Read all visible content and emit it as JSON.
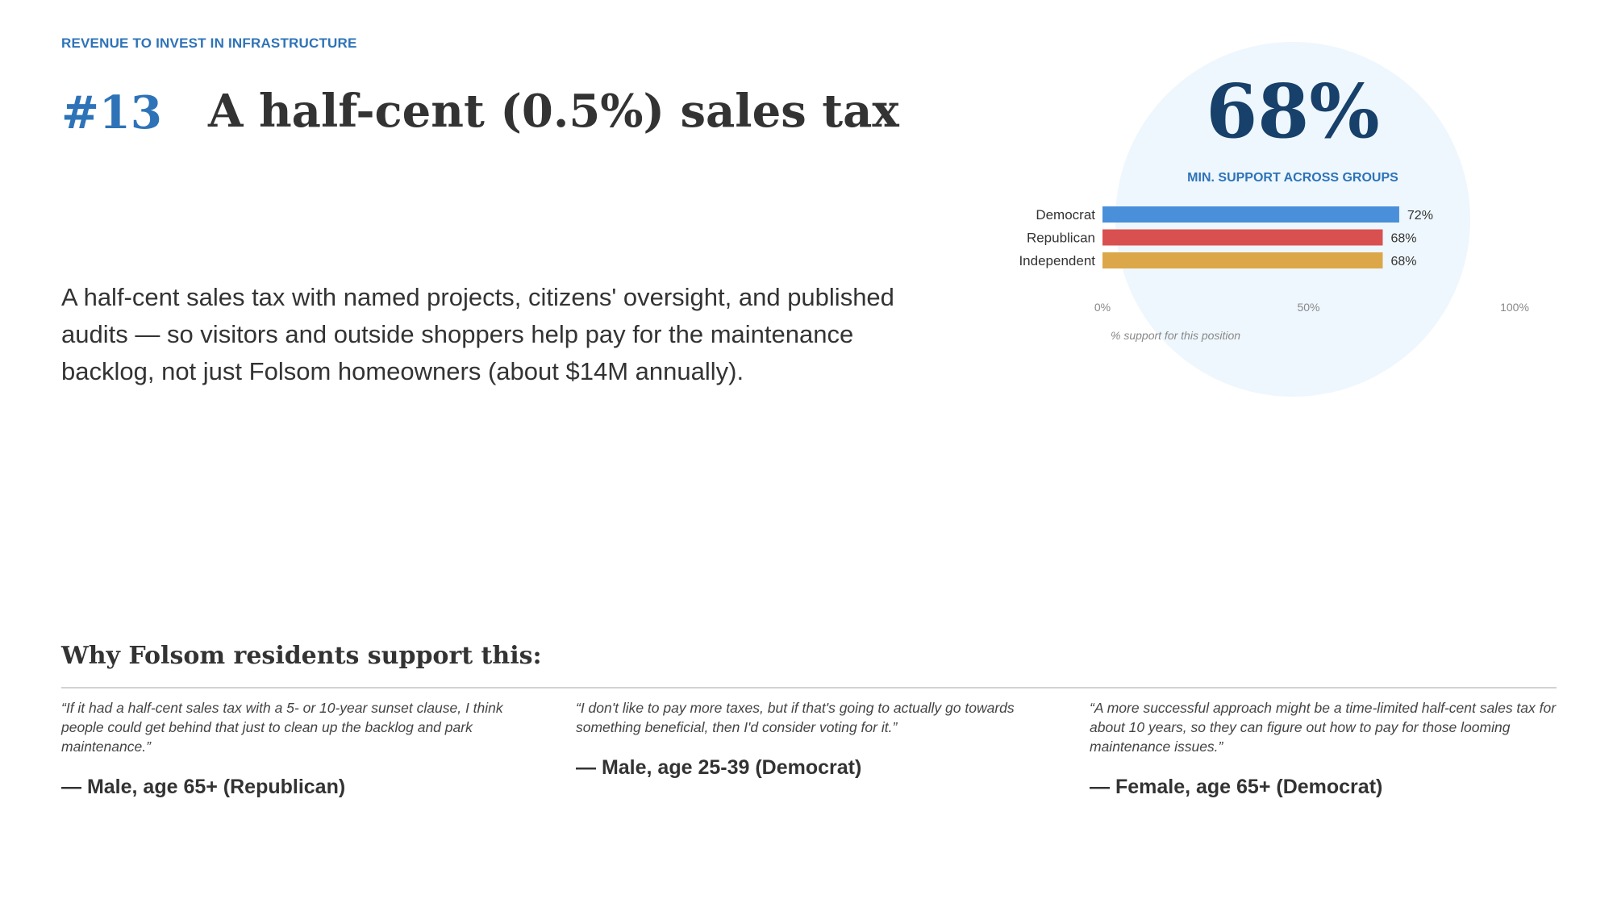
{
  "eyebrow": "REVENUE TO INVEST IN INFRASTRUCTURE",
  "item_number": "#13",
  "title": "A half-cent (0.5%) sales tax",
  "description": "A half-cent sales tax with named projects, citizens' oversight, and published audits — so visitors and outside shoppers help pay for the maintenance backlog, not just Folsom homeowners (about $14M annually).",
  "headline_stat": "68%",
  "headline_stat_label": "MIN. SUPPORT ACROSS GROUPS",
  "colors": {
    "accent": "#2e73b8",
    "headline": "#17406a",
    "circle_bg": "#eef7fd",
    "democrat": "#4a8fd9",
    "republican": "#d95050",
    "independent": "#dca748"
  },
  "chart_data": {
    "type": "bar",
    "orientation": "horizontal",
    "categories": [
      "Democrat",
      "Republican",
      "Independent"
    ],
    "values": [
      72,
      68,
      68
    ],
    "value_labels": [
      "72%",
      "68%",
      "68%"
    ],
    "bar_colors": [
      "#4a8fd9",
      "#d95050",
      "#dca748"
    ],
    "xlim": [
      0,
      100
    ],
    "x_ticks": [
      "0%",
      "50%",
      "100%"
    ],
    "x_tick_values": [
      0,
      50,
      100
    ],
    "xlabel": "% support for this position",
    "grid": false,
    "legend": "none"
  },
  "section_title": "Why Folsom residents support this:",
  "quotes": [
    {
      "text": "“If it had a half-cent sales tax with a 5- or 10-year sunset clause, I think people could get behind that just to clean up the backlog and park maintenance.”",
      "attribution": "— Male, age 65+ (Republican)"
    },
    {
      "text": "“I don't like to pay more taxes, but if that's going to actually go towards something beneficial, then I'd consider voting for it.”",
      "attribution": "— Male, age 25-39 (Democrat)"
    },
    {
      "text": "“A more successful approach might be a time-limited half-cent sales tax for about 10 years, so they can figure out how to pay for those looming maintenance issues.”",
      "attribution": "— Female, age 65+ (Democrat)"
    }
  ]
}
